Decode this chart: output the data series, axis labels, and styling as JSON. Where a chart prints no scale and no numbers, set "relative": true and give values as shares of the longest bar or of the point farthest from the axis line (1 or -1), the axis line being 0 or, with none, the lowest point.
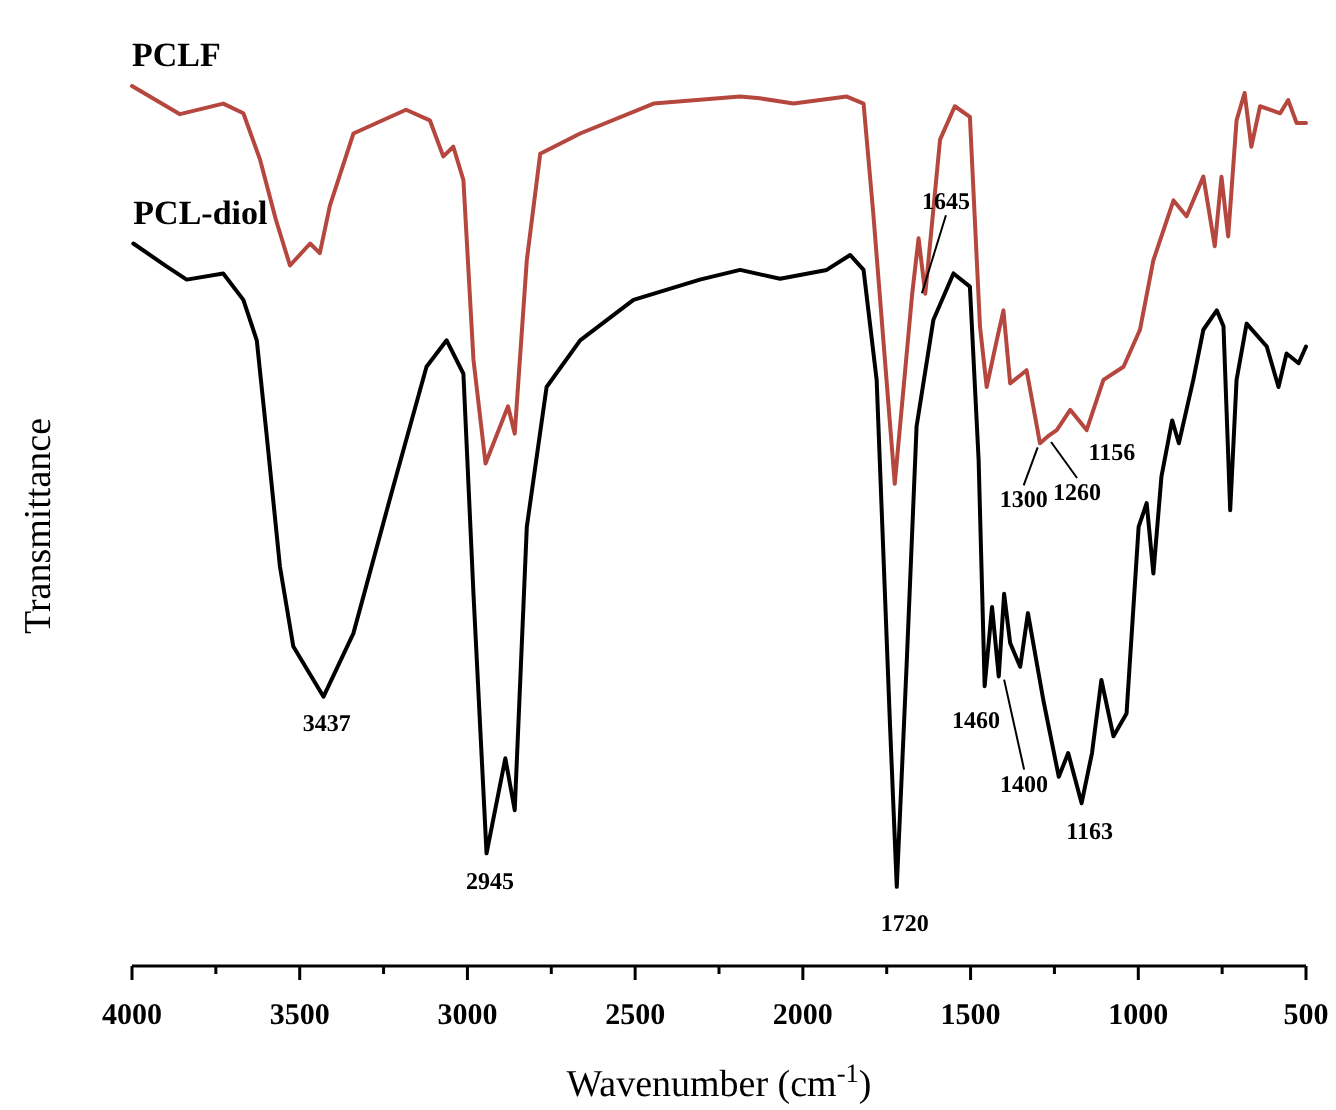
{
  "chart_data": {
    "type": "line",
    "relative": true,
    "xlabel": "Wavenumber (cm$^{-1}$)",
    "ylabel": "Transmittance",
    "xlim": [
      4000,
      500
    ],
    "xticks": [
      4000,
      {
        "value": 3750,
        "label": null
      },
      3500,
      {
        "value": 3250,
        "label": null
      },
      3000,
      {
        "value": 2750,
        "label": null
      },
      2500,
      {
        "value": 2250,
        "label": null
      },
      2000,
      {
        "value": 1750,
        "label": null
      },
      1500,
      {
        "value": 1250,
        "label": null
      },
      1000,
      {
        "value": 750,
        "label": null
      },
      500
    ],
    "grid": false,
    "marker": "none",
    "line_style": "solid",
    "series": [
      {
        "name": "PCLF",
        "color": "#b5473f",
        "x": [
          4000,
          3857,
          3728,
          3668,
          3618,
          3571,
          3529,
          3469,
          3440,
          3410,
          3340,
          3183,
          3112,
          3072,
          3042,
          3012,
          2982,
          2946,
          2879,
          2859,
          2823,
          2783,
          2664,
          2445,
          2187,
          2128,
          2028,
          1869,
          1819,
          1790,
          1726,
          1674,
          1655,
          1635,
          1591,
          1547,
          1502,
          1472,
          1452,
          1422,
          1402,
          1382,
          1333,
          1293,
          1269,
          1243,
          1203,
          1154,
          1104,
          1044,
          995,
          955,
          895,
          856,
          806,
          772,
          752,
          732,
          707,
          683,
          663,
          637,
          577,
          553,
          528,
          500
        ],
        "values": [
          1.0,
          0.968,
          0.98,
          0.969,
          0.916,
          0.848,
          0.796,
          0.821,
          0.81,
          0.864,
          0.946,
          0.973,
          0.961,
          0.92,
          0.931,
          0.893,
          0.689,
          0.571,
          0.636,
          0.605,
          0.802,
          0.923,
          0.946,
          0.98,
          0.988,
          0.986,
          0.98,
          0.988,
          0.98,
          0.855,
          0.548,
          0.764,
          0.827,
          0.764,
          0.939,
          0.977,
          0.965,
          0.727,
          0.658,
          0.711,
          0.745,
          0.662,
          0.677,
          0.594,
          0.602,
          0.609,
          0.632,
          0.609,
          0.666,
          0.681,
          0.723,
          0.802,
          0.87,
          0.852,
          0.897,
          0.818,
          0.897,
          0.829,
          0.961,
          0.992,
          0.931,
          0.977,
          0.969,
          0.984,
          0.958,
          0.958
        ]
      },
      {
        "name": "PCL-diol",
        "color": "#000000",
        "x": [
          3996,
          3897,
          3837,
          3728,
          3668,
          3628,
          3599,
          3559,
          3519,
          3429,
          3340,
          3221,
          3122,
          3062,
          3012,
          2982,
          2943,
          2887,
          2859,
          2823,
          2764,
          2664,
          2505,
          2307,
          2187,
          2068,
          1929,
          1859,
          1819,
          1780,
          1740,
          1720,
          1690,
          1661,
          1611,
          1551,
          1502,
          1476,
          1458,
          1436,
          1416,
          1400,
          1382,
          1352,
          1329,
          1283,
          1237,
          1209,
          1169,
          1138,
          1110,
          1074,
          1035,
          999,
          975,
          955,
          931,
          899,
          879,
          836,
          806,
          766,
          746,
          726,
          707,
          677,
          617,
          582,
          558,
          522,
          500
        ],
        "values": [
          0.821,
          0.795,
          0.78,
          0.787,
          0.757,
          0.711,
          0.605,
          0.454,
          0.363,
          0.306,
          0.378,
          0.545,
          0.681,
          0.711,
          0.673,
          0.423,
          0.128,
          0.236,
          0.177,
          0.499,
          0.658,
          0.711,
          0.757,
          0.78,
          0.791,
          0.781,
          0.791,
          0.808,
          0.791,
          0.666,
          0.272,
          0.09,
          0.348,
          0.613,
          0.734,
          0.787,
          0.772,
          0.575,
          0.318,
          0.408,
          0.329,
          0.423,
          0.367,
          0.34,
          0.401,
          0.302,
          0.215,
          0.242,
          0.185,
          0.242,
          0.325,
          0.261,
          0.287,
          0.499,
          0.526,
          0.446,
          0.556,
          0.62,
          0.594,
          0.666,
          0.723,
          0.745,
          0.727,
          0.518,
          0.666,
          0.73,
          0.704,
          0.658,
          0.696,
          0.685,
          0.704
        ]
      }
    ],
    "annotations": [
      {
        "text": "3437",
        "x": 3437,
        "y": 0.306
      },
      {
        "text": "2945",
        "x": 2945,
        "y": 0.128
      },
      {
        "text": "1720",
        "x": 1720,
        "y": 0.09
      },
      {
        "text": "1645",
        "x": 1645,
        "y": 0.76
      },
      {
        "text": "1300",
        "x": 1300,
        "y": 0.594
      },
      {
        "text": "1260",
        "x": 1260,
        "y": 0.6
      },
      {
        "text": "1156",
        "x": 1156,
        "y": 0.609
      },
      {
        "text": "1460",
        "x": 1460,
        "y": 0.32
      },
      {
        "text": "1400",
        "x": 1400,
        "y": 0.33
      },
      {
        "text": "1163",
        "x": 1163,
        "y": 0.185
      }
    ]
  }
}
